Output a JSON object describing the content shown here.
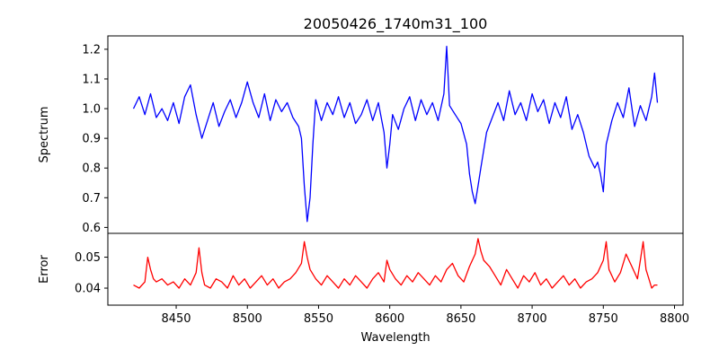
{
  "chart_data": {
    "type": "line",
    "title": "20050426_1740m31_100",
    "xlabel": "Wavelength",
    "xlim": [
      8402,
      8806
    ],
    "xticks": [
      8450,
      8500,
      8550,
      8600,
      8650,
      8700,
      8750,
      8800
    ],
    "panels": [
      {
        "id": "spectrum",
        "ylabel": "Spectrum",
        "ylim": [
          0.58,
          1.245
        ],
        "yticks": [
          0.6,
          0.7,
          0.8,
          0.9,
          1.0,
          1.1,
          1.2
        ],
        "ytick_labels": [
          "0.6",
          "0.7",
          "0.8",
          "0.9",
          "1.0",
          "1.1",
          "1.2"
        ],
        "series": [
          {
            "color": "#0000ff",
            "x": [
              8420,
              8424,
              8428,
              8432,
              8436,
              8440,
              8444,
              8448,
              8452,
              8456,
              8460,
              8464,
              8468,
              8472,
              8476,
              8480,
              8484,
              8488,
              8492,
              8496,
              8500,
              8504,
              8508,
              8512,
              8516,
              8520,
              8524,
              8528,
              8532,
              8536,
              8538,
              8540,
              8542,
              8544,
              8546,
              8548,
              8552,
              8556,
              8560,
              8564,
              8568,
              8572,
              8576,
              8580,
              8584,
              8588,
              8592,
              8596,
              8598,
              8600,
              8602,
              8606,
              8610,
              8614,
              8618,
              8622,
              8626,
              8630,
              8634,
              8638,
              8640,
              8642,
              8646,
              8650,
              8654,
              8656,
              8658,
              8660,
              8662,
              8664,
              8666,
              8668,
              8672,
              8676,
              8680,
              8684,
              8688,
              8692,
              8696,
              8700,
              8704,
              8708,
              8712,
              8716,
              8720,
              8724,
              8728,
              8732,
              8736,
              8740,
              8744,
              8746,
              8748,
              8750,
              8752,
              8756,
              8760,
              8764,
              8768,
              8772,
              8776,
              8780,
              8784,
              8786,
              8788
            ],
            "y": [
              1.0,
              1.04,
              0.98,
              1.05,
              0.97,
              1.0,
              0.96,
              1.02,
              0.95,
              1.04,
              1.08,
              0.98,
              0.9,
              0.96,
              1.02,
              0.94,
              0.99,
              1.03,
              0.97,
              1.02,
              1.09,
              1.02,
              0.97,
              1.05,
              0.96,
              1.03,
              0.99,
              1.02,
              0.97,
              0.94,
              0.9,
              0.74,
              0.62,
              0.7,
              0.88,
              1.03,
              0.96,
              1.02,
              0.98,
              1.04,
              0.97,
              1.02,
              0.95,
              0.98,
              1.03,
              0.96,
              1.02,
              0.92,
              0.8,
              0.88,
              0.98,
              0.93,
              1.0,
              1.04,
              0.96,
              1.03,
              0.98,
              1.02,
              0.96,
              1.05,
              1.21,
              1.01,
              0.98,
              0.95,
              0.88,
              0.78,
              0.72,
              0.68,
              0.74,
              0.8,
              0.86,
              0.92,
              0.97,
              1.02,
              0.96,
              1.06,
              0.98,
              1.02,
              0.96,
              1.05,
              0.99,
              1.03,
              0.95,
              1.02,
              0.97,
              1.04,
              0.93,
              0.98,
              0.92,
              0.84,
              0.8,
              0.82,
              0.78,
              0.72,
              0.88,
              0.96,
              1.02,
              0.97,
              1.07,
              0.94,
              1.01,
              0.96,
              1.04,
              1.12,
              1.02
            ]
          }
        ]
      },
      {
        "id": "error",
        "ylabel": "Error",
        "ylim": [
          0.0345,
          0.0577
        ],
        "yticks": [
          0.04,
          0.05
        ],
        "ytick_labels": [
          "0.04",
          "0.05"
        ],
        "series": [
          {
            "color": "#ff0000",
            "x": [
              8420,
              8424,
              8428,
              8430,
              8432,
              8434,
              8436,
              8440,
              8444,
              8448,
              8452,
              8456,
              8460,
              8464,
              8466,
              8468,
              8470,
              8474,
              8478,
              8482,
              8486,
              8490,
              8494,
              8498,
              8502,
              8506,
              8510,
              8514,
              8518,
              8522,
              8526,
              8530,
              8534,
              8538,
              8540,
              8542,
              8544,
              8548,
              8552,
              8556,
              8560,
              8564,
              8568,
              8572,
              8576,
              8580,
              8584,
              8588,
              8592,
              8596,
              8598,
              8600,
              8604,
              8608,
              8612,
              8616,
              8620,
              8624,
              8628,
              8632,
              8636,
              8640,
              8644,
              8648,
              8652,
              8656,
              8660,
              8662,
              8664,
              8666,
              8670,
              8674,
              8678,
              8682,
              8686,
              8690,
              8694,
              8698,
              8702,
              8706,
              8710,
              8714,
              8718,
              8722,
              8726,
              8730,
              8734,
              8738,
              8742,
              8746,
              8750,
              8752,
              8754,
              8758,
              8762,
              8766,
              8770,
              8774,
              8776,
              8778,
              8780,
              8782,
              8784,
              8786,
              8788
            ],
            "y": [
              0.041,
              0.04,
              0.042,
              0.05,
              0.046,
              0.043,
              0.042,
              0.043,
              0.041,
              0.042,
              0.04,
              0.043,
              0.041,
              0.045,
              0.053,
              0.045,
              0.041,
              0.04,
              0.043,
              0.042,
              0.04,
              0.044,
              0.041,
              0.043,
              0.04,
              0.042,
              0.044,
              0.041,
              0.043,
              0.04,
              0.042,
              0.043,
              0.045,
              0.048,
              0.055,
              0.05,
              0.046,
              0.043,
              0.041,
              0.044,
              0.042,
              0.04,
              0.043,
              0.041,
              0.044,
              0.042,
              0.04,
              0.043,
              0.045,
              0.042,
              0.049,
              0.046,
              0.043,
              0.041,
              0.044,
              0.042,
              0.045,
              0.043,
              0.041,
              0.044,
              0.042,
              0.046,
              0.048,
              0.044,
              0.042,
              0.047,
              0.051,
              0.056,
              0.052,
              0.049,
              0.047,
              0.044,
              0.041,
              0.046,
              0.043,
              0.04,
              0.044,
              0.042,
              0.045,
              0.041,
              0.043,
              0.04,
              0.042,
              0.044,
              0.041,
              0.043,
              0.04,
              0.042,
              0.043,
              0.045,
              0.049,
              0.055,
              0.046,
              0.042,
              0.045,
              0.051,
              0.047,
              0.043,
              0.049,
              0.055,
              0.046,
              0.043,
              0.04,
              0.041,
              0.041
            ]
          }
        ]
      }
    ]
  }
}
